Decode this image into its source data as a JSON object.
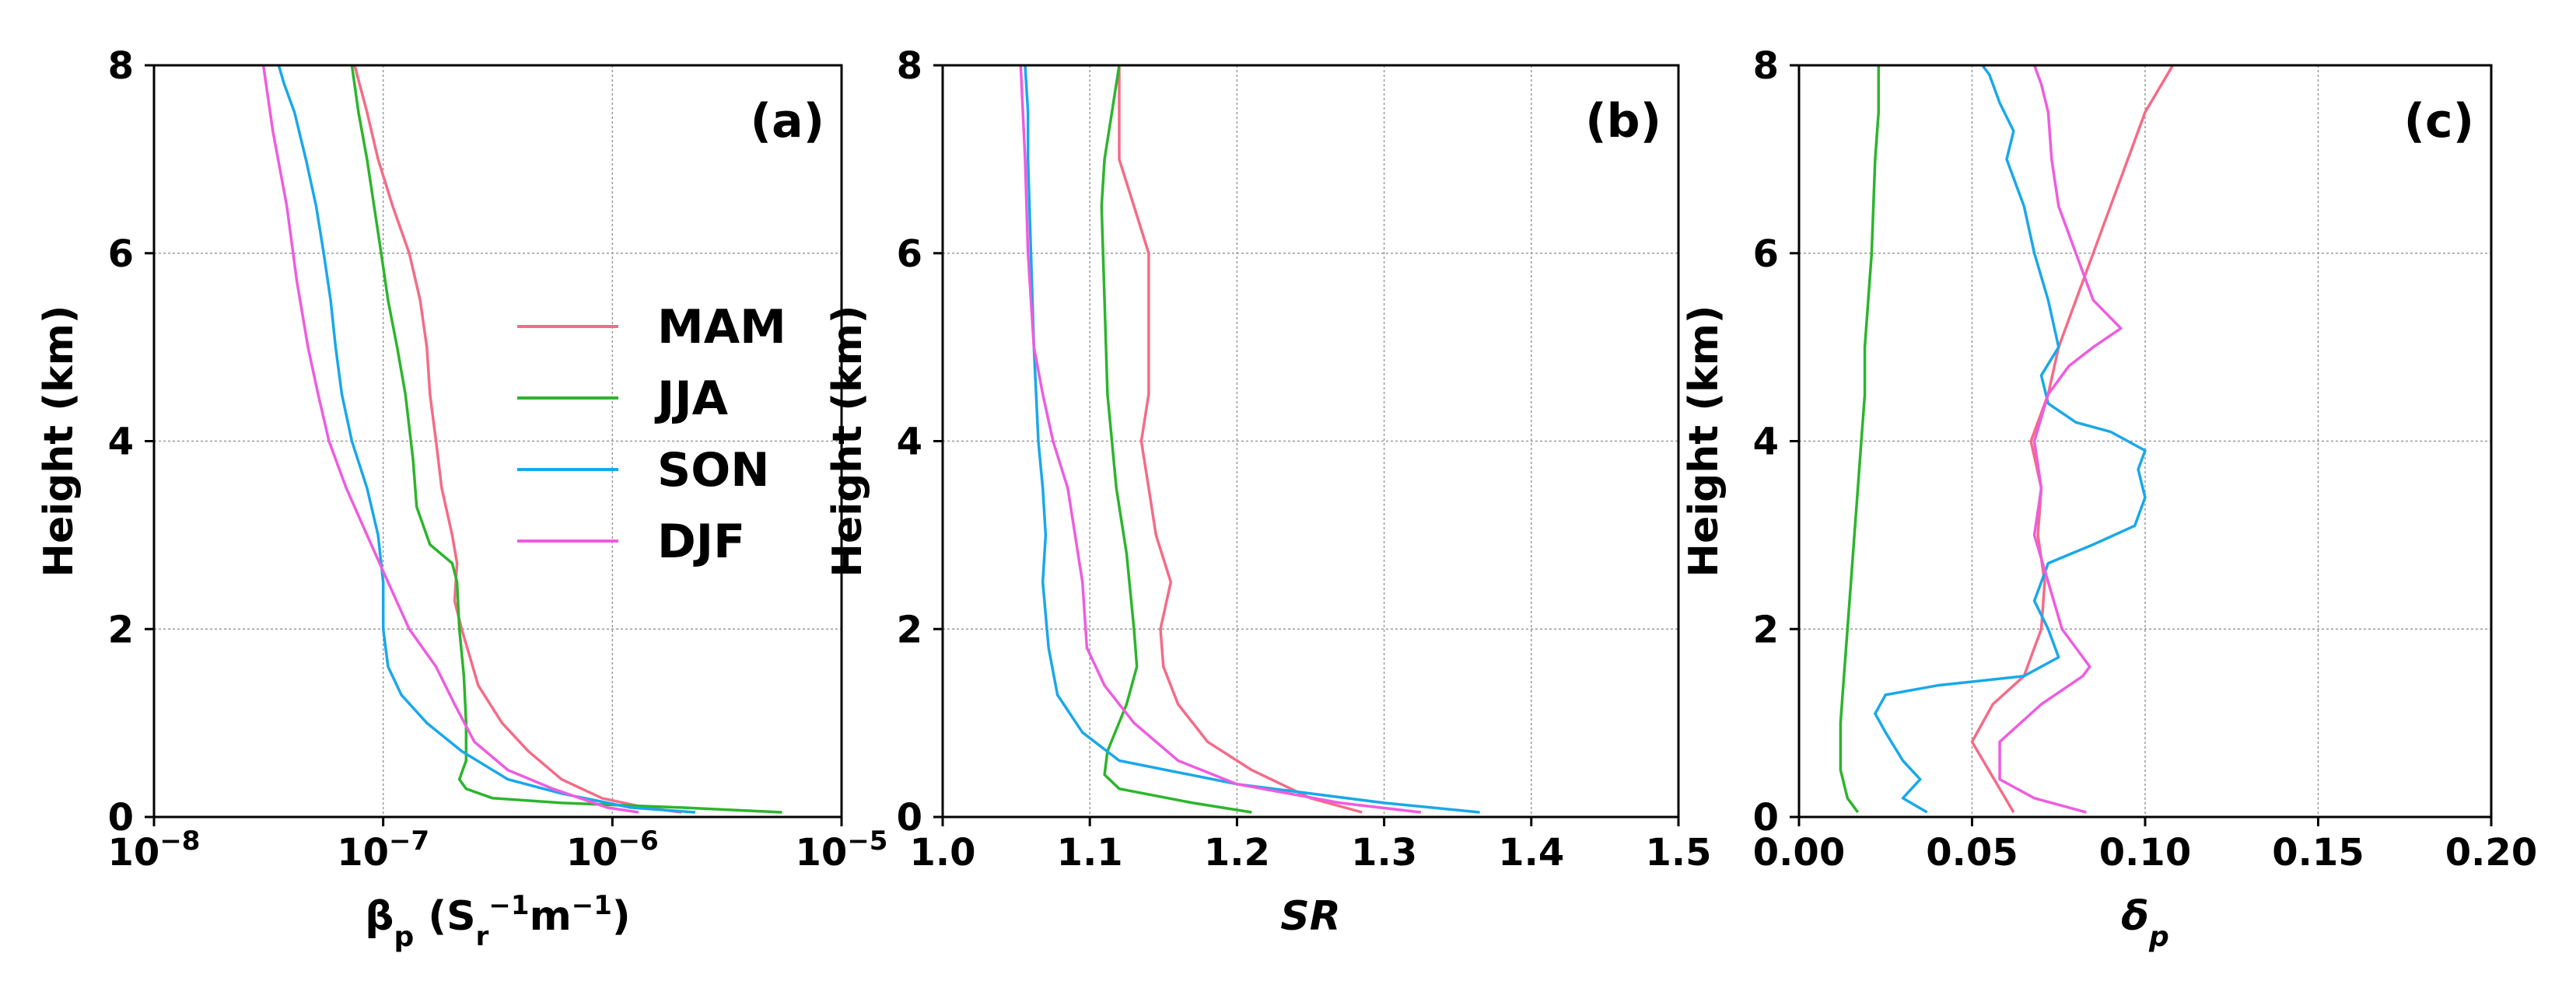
{
  "figure": {
    "legend": [
      "MAM",
      "JJA",
      "SON",
      "DJF"
    ]
  },
  "chart_data": [
    {
      "type": "line",
      "panel": "(a)",
      "title": "",
      "xlabel_main": "β",
      "xlabel_sub": "p",
      "xlabel_units_open": " (S",
      "xlabel_units_sub": "r",
      "xlabel_units_sup": "−1",
      "xlabel_units_m": "m",
      "xlabel_units_msup": "−1",
      "xlabel_units_close": ")",
      "ylabel": "Height (km)",
      "xscale": "log",
      "xlim": [
        1e-08,
        1e-05
      ],
      "ylim": [
        0,
        8
      ],
      "xticks": [
        {
          "value": 1e-08,
          "base": "10",
          "exp": "−8"
        },
        {
          "value": 1e-07,
          "base": "10",
          "exp": "−7"
        },
        {
          "value": 1e-06,
          "base": "10",
          "exp": "−6"
        },
        {
          "value": 1e-05,
          "base": "10",
          "exp": "−5"
        }
      ],
      "yticks": [
        "0",
        "2",
        "4",
        "6",
        "8"
      ],
      "legend_loc": "center",
      "series": [
        {
          "name": "MAM",
          "color": "#f56b86",
          "x": [
            2e-06,
            1.4e-06,
            9e-07,
            6e-07,
            4.3e-07,
            3.3e-07,
            2.6e-07,
            2.2e-07,
            2.05e-07,
            2.1e-07,
            2e-07,
            1.8e-07,
            1.7e-07,
            1.6e-07,
            1.55e-07,
            1.45e-07,
            1.3e-07,
            1.1e-07,
            9.5e-08,
            8.5e-08,
            7.5e-08
          ],
          "y": [
            0.05,
            0.1,
            0.2,
            0.4,
            0.7,
            1.0,
            1.4,
            2.0,
            2.3,
            2.7,
            3.0,
            3.5,
            4.0,
            4.5,
            5.0,
            5.5,
            6.0,
            6.5,
            7.0,
            7.5,
            8.0
          ]
        },
        {
          "name": "JJA",
          "color": "#2cb52c",
          "x": [
            5.5e-06,
            2e-06,
            6e-07,
            3e-07,
            2.3e-07,
            2.15e-07,
            2.3e-07,
            2.3e-07,
            2.25e-07,
            2.15e-07,
            2.1e-07,
            2e-07,
            1.6e-07,
            1.4e-07,
            1.35e-07,
            1.25e-07,
            1.15e-07,
            1.05e-07,
            9.8e-08,
            8.5e-08,
            7.8e-08,
            7.3e-08
          ],
          "y": [
            0.05,
            0.1,
            0.15,
            0.2,
            0.3,
            0.4,
            0.6,
            1.0,
            1.5,
            2.0,
            2.5,
            2.7,
            2.9,
            3.3,
            3.8,
            4.5,
            5.0,
            5.5,
            6.0,
            7.0,
            7.5,
            8.0
          ]
        },
        {
          "name": "SON",
          "color": "#19a8ea",
          "x": [
            2.3e-06,
            1.2e-06,
            6e-07,
            3.5e-07,
            2.2e-07,
            1.55e-07,
            1.2e-07,
            1.05e-07,
            1e-07,
            1e-07,
            9.5e-08,
            8.5e-08,
            7.3e-08,
            6.6e-08,
            6.2e-08,
            5.9e-08,
            5.5e-08,
            5.1e-08,
            4.6e-08,
            4.1e-08,
            3.7e-08,
            3.5e-08
          ],
          "y": [
            0.05,
            0.1,
            0.25,
            0.4,
            0.7,
            1.0,
            1.3,
            1.6,
            2.0,
            2.5,
            3.0,
            3.5,
            4.0,
            4.5,
            5.0,
            5.5,
            6.0,
            6.5,
            7.0,
            7.5,
            7.8,
            8.0
          ]
        },
        {
          "name": "DJF",
          "color": "#ee5ce0",
          "x": [
            1.3e-06,
            9.5e-07,
            5.5e-07,
            3.5e-07,
            2.5e-07,
            2.05e-07,
            1.7e-07,
            1.3e-07,
            1.05e-07,
            8.5e-08,
            6.9e-08,
            5.8e-08,
            5.2e-08,
            4.7e-08,
            4.2e-08,
            3.8e-08,
            3.3e-08,
            3e-08
          ],
          "y": [
            0.05,
            0.1,
            0.3,
            0.5,
            0.8,
            1.2,
            1.6,
            2.0,
            2.5,
            3.0,
            3.5,
            4.0,
            4.5,
            5.0,
            5.7,
            6.5,
            7.3,
            8.0
          ]
        }
      ]
    },
    {
      "type": "line",
      "panel": "(b)",
      "title": "",
      "xlabel": "SR",
      "ylabel": "Height (km)",
      "xscale": "linear",
      "xlim": [
        1.0,
        1.5
      ],
      "ylim": [
        0,
        8
      ],
      "xticks": [
        {
          "value": 1.0,
          "label": "1.0"
        },
        {
          "value": 1.1,
          "label": "1.1"
        },
        {
          "value": 1.2,
          "label": "1.2"
        },
        {
          "value": 1.3,
          "label": "1.3"
        },
        {
          "value": 1.4,
          "label": "1.4"
        },
        {
          "value": 1.5,
          "label": "1.5"
        }
      ],
      "yticks": [
        "0",
        "2",
        "4",
        "6",
        "8"
      ],
      "series": [
        {
          "name": "MAM",
          "color": "#f56b86",
          "x": [
            1.285,
            1.25,
            1.21,
            1.18,
            1.16,
            1.15,
            1.148,
            1.155,
            1.145,
            1.14,
            1.135,
            1.14,
            1.14,
            1.14,
            1.13,
            1.12,
            1.12
          ],
          "y": [
            0.05,
            0.2,
            0.5,
            0.8,
            1.2,
            1.6,
            2.0,
            2.5,
            3.0,
            3.5,
            4.0,
            4.5,
            5.5,
            6.0,
            6.5,
            7.0,
            8.0
          ]
        },
        {
          "name": "JJA",
          "color": "#2cb52c",
          "x": [
            1.21,
            1.17,
            1.12,
            1.11,
            1.112,
            1.125,
            1.132,
            1.13,
            1.125,
            1.118,
            1.112,
            1.11,
            1.108,
            1.11,
            1.115,
            1.12
          ],
          "y": [
            0.05,
            0.15,
            0.3,
            0.45,
            0.7,
            1.2,
            1.6,
            2.0,
            2.8,
            3.5,
            4.5,
            5.5,
            6.5,
            7.0,
            7.5,
            8.0
          ]
        },
        {
          "name": "SON",
          "color": "#19a8ea",
          "x": [
            1.365,
            1.3,
            1.2,
            1.12,
            1.095,
            1.078,
            1.072,
            1.068,
            1.07,
            1.068,
            1.065,
            1.062,
            1.06,
            1.058,
            1.058,
            1.056
          ],
          "y": [
            0.05,
            0.15,
            0.35,
            0.6,
            0.9,
            1.3,
            1.8,
            2.5,
            3.0,
            3.5,
            4.0,
            5.0,
            6.0,
            7.0,
            7.5,
            8.0
          ]
        },
        {
          "name": "DJF",
          "color": "#ee5ce0",
          "x": [
            1.325,
            1.27,
            1.2,
            1.16,
            1.13,
            1.11,
            1.098,
            1.095,
            1.09,
            1.085,
            1.075,
            1.068,
            1.062,
            1.058,
            1.056,
            1.053
          ],
          "y": [
            0.05,
            0.15,
            0.35,
            0.6,
            1.0,
            1.4,
            1.8,
            2.5,
            3.0,
            3.5,
            4.0,
            4.5,
            5.0,
            6.0,
            7.0,
            8.0
          ]
        }
      ]
    },
    {
      "type": "line",
      "panel": "(c)",
      "title": "",
      "xlabel_main": "δ",
      "xlabel_sub": "p",
      "ylabel": "Height (km)",
      "xscale": "linear",
      "xlim": [
        0.0,
        0.2
      ],
      "ylim": [
        0,
        8
      ],
      "xticks": [
        {
          "value": 0.0,
          "label": "0.00"
        },
        {
          "value": 0.05,
          "label": "0.05"
        },
        {
          "value": 0.1,
          "label": "0.10"
        },
        {
          "value": 0.15,
          "label": "0.15"
        },
        {
          "value": 0.2,
          "label": "0.20"
        }
      ],
      "yticks": [
        "0",
        "2",
        "4",
        "6",
        "8"
      ],
      "series": [
        {
          "name": "MAM",
          "color": "#f56b86",
          "x": [
            0.062,
            0.058,
            0.05,
            0.056,
            0.065,
            0.07,
            0.071,
            0.069,
            0.07,
            0.067,
            0.072,
            0.075,
            0.08,
            0.085,
            0.09,
            0.095,
            0.1,
            0.108
          ],
          "y": [
            0.05,
            0.3,
            0.8,
            1.2,
            1.5,
            2.0,
            2.5,
            3.0,
            3.5,
            4.0,
            4.5,
            5.0,
            5.5,
            6.0,
            6.5,
            7.0,
            7.5,
            8.0
          ]
        },
        {
          "name": "JJA",
          "color": "#2cb52c",
          "x": [
            0.017,
            0.014,
            0.012,
            0.012,
            0.013,
            0.014,
            0.015,
            0.016,
            0.017,
            0.018,
            0.019,
            0.019,
            0.021,
            0.022,
            0.023,
            0.023
          ],
          "y": [
            0.05,
            0.2,
            0.5,
            1.0,
            1.5,
            2.0,
            2.5,
            3.0,
            3.5,
            4.0,
            4.5,
            5.0,
            6.0,
            7.0,
            7.5,
            8.0
          ]
        },
        {
          "name": "SON",
          "color": "#19a8ea",
          "x": [
            0.037,
            0.03,
            0.035,
            0.03,
            0.025,
            0.022,
            0.025,
            0.04,
            0.065,
            0.075,
            0.072,
            0.068,
            0.072,
            0.085,
            0.097,
            0.1,
            0.098,
            0.1,
            0.09,
            0.08,
            0.072,
            0.07,
            0.075,
            0.072,
            0.068,
            0.065,
            0.06,
            0.062,
            0.058,
            0.055,
            0.053
          ],
          "y": [
            0.05,
            0.2,
            0.4,
            0.6,
            0.9,
            1.1,
            1.3,
            1.4,
            1.5,
            1.7,
            2.0,
            2.3,
            2.7,
            2.9,
            3.1,
            3.4,
            3.7,
            3.9,
            4.1,
            4.2,
            4.4,
            4.7,
            5.0,
            5.5,
            6.0,
            6.5,
            7.0,
            7.3,
            7.6,
            7.9,
            8.0
          ]
        },
        {
          "name": "DJF",
          "color": "#ee5ce0",
          "x": [
            0.083,
            0.068,
            0.058,
            0.058,
            0.07,
            0.082,
            0.084,
            0.076,
            0.072,
            0.068,
            0.07,
            0.068,
            0.072,
            0.078,
            0.085,
            0.093,
            0.085,
            0.08,
            0.075,
            0.073,
            0.072,
            0.07,
            0.068
          ],
          "y": [
            0.05,
            0.2,
            0.4,
            0.8,
            1.2,
            1.5,
            1.6,
            2.0,
            2.5,
            3.0,
            3.5,
            4.0,
            4.5,
            4.8,
            5.0,
            5.2,
            5.5,
            6.0,
            6.5,
            7.0,
            7.5,
            7.8,
            8.0
          ]
        }
      ]
    }
  ]
}
